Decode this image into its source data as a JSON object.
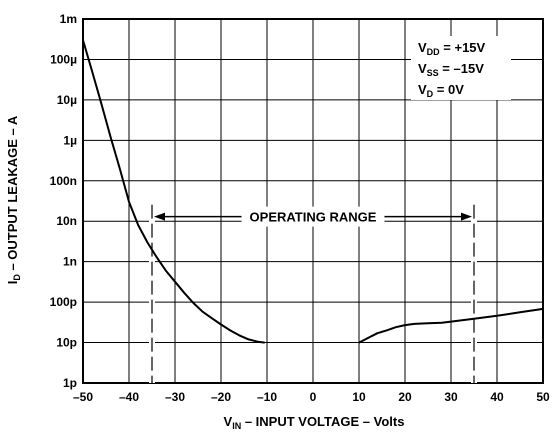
{
  "chart_data": {
    "type": "line",
    "xlabel": {
      "prefix": "V",
      "sub": "IN",
      "rest": " – INPUT VOLTAGE – Volts"
    },
    "ylabel": {
      "prefix": "I",
      "sub": "D",
      "rest": " – OUTPUT LEAKAGE – A"
    },
    "xlim": [
      -50,
      50
    ],
    "ylim": [
      1e-12,
      0.001
    ],
    "yscale": "log",
    "grid": true,
    "x_ticks": [
      {
        "value": -50,
        "label": "–50"
      },
      {
        "value": -40,
        "label": "–40"
      },
      {
        "value": -30,
        "label": "–30"
      },
      {
        "value": -20,
        "label": "–20"
      },
      {
        "value": -10,
        "label": "–10"
      },
      {
        "value": 0,
        "label": "0"
      },
      {
        "value": 10,
        "label": "10"
      },
      {
        "value": 20,
        "label": "20"
      },
      {
        "value": 30,
        "label": "30"
      },
      {
        "value": 40,
        "label": "40"
      },
      {
        "value": 50,
        "label": "50"
      }
    ],
    "y_ticks": [
      {
        "value": 0.001,
        "label": "1m"
      },
      {
        "value": 0.0001,
        "label": "100µ"
      },
      {
        "value": 1e-05,
        "label": "10µ"
      },
      {
        "value": 1e-06,
        "label": "1µ"
      },
      {
        "value": 1e-07,
        "label": "100n"
      },
      {
        "value": 1e-08,
        "label": "10n"
      },
      {
        "value": 1e-09,
        "label": "1n"
      },
      {
        "value": 1e-10,
        "label": "100p"
      },
      {
        "value": 1e-11,
        "label": "10p"
      },
      {
        "value": 1e-12,
        "label": "1p"
      }
    ],
    "series": [
      {
        "values": [
          [
            -50,
            0.0003
          ],
          [
            -48,
            5e-05
          ],
          [
            -46,
            8e-06
          ],
          [
            -44,
            1.2e-06
          ],
          [
            -42,
            2e-07
          ],
          [
            -40,
            3e-08
          ],
          [
            -38,
            8e-09
          ],
          [
            -36,
            3e-09
          ],
          [
            -34,
            1.3e-09
          ],
          [
            -32,
            6e-10
          ],
          [
            -30,
            3.2e-10
          ],
          [
            -28,
            1.7e-10
          ],
          [
            -26,
            9.5e-11
          ],
          [
            -24,
            5.8e-11
          ],
          [
            -22,
            4e-11
          ],
          [
            -20,
            2.8e-11
          ],
          [
            -18,
            2e-11
          ],
          [
            -16,
            1.5e-11
          ],
          [
            -14,
            1.2e-11
          ],
          [
            -12,
            1.05e-11
          ],
          [
            -10.5,
            1e-11
          ]
        ]
      },
      {
        "values": [
          [
            10,
            1e-11
          ],
          [
            12,
            1.3e-11
          ],
          [
            14,
            1.7e-11
          ],
          [
            16,
            2e-11
          ],
          [
            18,
            2.4e-11
          ],
          [
            20,
            2.7e-11
          ],
          [
            22,
            2.9e-11
          ],
          [
            25,
            3e-11
          ],
          [
            28,
            3.1e-11
          ],
          [
            30,
            3.3e-11
          ],
          [
            35,
            3.9e-11
          ],
          [
            40,
            4.6e-11
          ],
          [
            45,
            5.6e-11
          ],
          [
            50,
            6.8e-11
          ]
        ]
      }
    ],
    "annotations": {
      "operating_range": {
        "label": "OPERATING RANGE",
        "x_start": -35,
        "x_end": 35,
        "y": 1.3e-08
      },
      "conditions": [
        {
          "prefix": "V",
          "sub": "DD",
          "rest": " = +15V"
        },
        {
          "prefix": "V",
          "sub": "SS",
          "rest": " = –15V"
        },
        {
          "prefix": "V",
          "sub": "D",
          "rest": " = 0V"
        }
      ]
    }
  }
}
